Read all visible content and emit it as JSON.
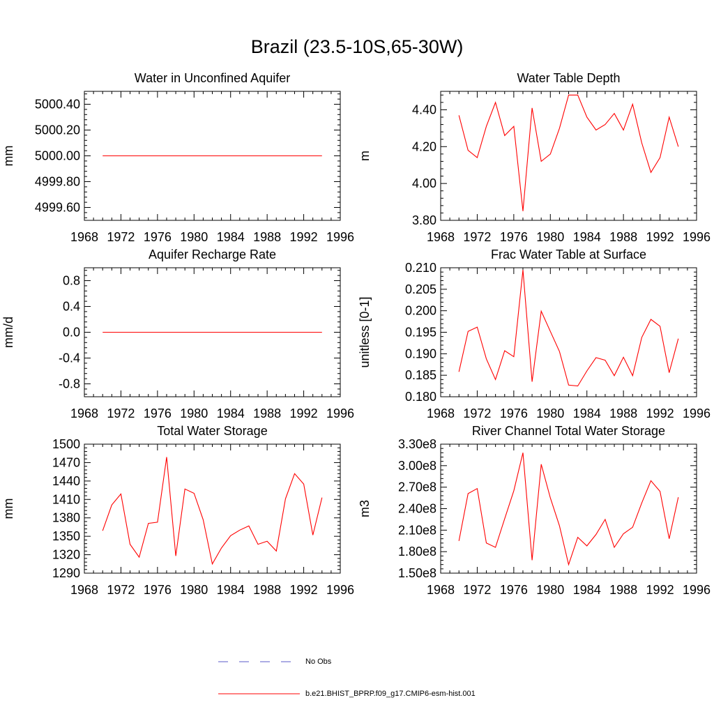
{
  "figure": {
    "title": "Brazil (23.5-10S,65-30W)"
  },
  "legend": {
    "entries": [
      {
        "label": "No Obs",
        "style": "dashed",
        "color": "#5a5ac8"
      },
      {
        "label": "b.e21.BHIST_BPRP.f09_g17.CMIP6-esm-hist.001",
        "style": "solid",
        "color": "#ff0000"
      }
    ]
  },
  "chart_data": [
    {
      "type": "line",
      "title": "Water in Unconfined Aquifer",
      "ylabel": "mm",
      "xlim": [
        1968,
        1996
      ],
      "ylim": [
        4999.5,
        5000.5
      ],
      "xticks": [
        1968,
        1972,
        1976,
        1980,
        1984,
        1988,
        1992,
        1996
      ],
      "xtick_labels": [
        "1968",
        "1972",
        "1976",
        "1980",
        "1984",
        "1988",
        "1992",
        "1996"
      ],
      "yticks": [
        4999.6,
        4999.8,
        5000.0,
        5000.2,
        5000.4
      ],
      "ytick_labels": [
        "4999.60",
        "4999.80",
        "5000.00",
        "5000.20",
        "5000.40"
      ],
      "series": [
        {
          "color": "#ff0000",
          "x": [
            1970,
            1994
          ],
          "y": [
            5000.0,
            5000.0
          ]
        }
      ]
    },
    {
      "type": "line",
      "title": "Water Table Depth",
      "ylabel": "m",
      "xlim": [
        1968,
        1996
      ],
      "ylim": [
        3.8,
        4.5
      ],
      "xticks": [
        1968,
        1972,
        1976,
        1980,
        1984,
        1988,
        1992,
        1996
      ],
      "xtick_labels": [
        "1968",
        "1972",
        "1976",
        "1980",
        "1984",
        "1988",
        "1992",
        "1996"
      ],
      "yticks": [
        3.8,
        4.0,
        4.2,
        4.4
      ],
      "ytick_labels": [
        "3.80",
        "4.00",
        "4.20",
        "4.40"
      ],
      "series": [
        {
          "color": "#ff0000",
          "x": [
            1970,
            1971,
            1972,
            1973,
            1974,
            1975,
            1976,
            1977,
            1978,
            1979,
            1980,
            1981,
            1982,
            1983,
            1984,
            1985,
            1986,
            1987,
            1988,
            1989,
            1990,
            1991,
            1992,
            1993,
            1994
          ],
          "y": [
            4.37,
            4.18,
            4.14,
            4.31,
            4.44,
            4.26,
            4.31,
            3.85,
            4.41,
            4.12,
            4.16,
            4.3,
            4.48,
            4.48,
            4.36,
            4.29,
            4.32,
            4.38,
            4.29,
            4.43,
            4.22,
            4.06,
            4.14,
            4.36,
            4.2
          ]
        }
      ]
    },
    {
      "type": "line",
      "title": "Aquifer Recharge Rate",
      "ylabel": "mm/d",
      "xlim": [
        1968,
        1996
      ],
      "ylim": [
        -1.0,
        1.0
      ],
      "xticks": [
        1968,
        1972,
        1976,
        1980,
        1984,
        1988,
        1992,
        1996
      ],
      "xtick_labels": [
        "1968",
        "1972",
        "1976",
        "1980",
        "1984",
        "1988",
        "1992",
        "1996"
      ],
      "yticks": [
        -0.8,
        -0.4,
        0.0,
        0.4,
        0.8
      ],
      "ytick_labels": [
        "-0.8",
        "-0.4",
        "0.0",
        "0.4",
        "0.8"
      ],
      "series": [
        {
          "color": "#ff0000",
          "x": [
            1970,
            1994
          ],
          "y": [
            0.0,
            0.0
          ]
        }
      ]
    },
    {
      "type": "line",
      "title": "Frac Water Table at Surface",
      "ylabel": "unitless [0-1]",
      "xlim": [
        1968,
        1996
      ],
      "ylim": [
        0.18,
        0.21
      ],
      "xticks": [
        1968,
        1972,
        1976,
        1980,
        1984,
        1988,
        1992,
        1996
      ],
      "xtick_labels": [
        "1968",
        "1972",
        "1976",
        "1980",
        "1984",
        "1988",
        "1992",
        "1996"
      ],
      "yticks": [
        0.18,
        0.185,
        0.19,
        0.195,
        0.2,
        0.205,
        0.21
      ],
      "ytick_labels": [
        "0.180",
        "0.185",
        "0.190",
        "0.195",
        "0.200",
        "0.205",
        "0.210"
      ],
      "series": [
        {
          "color": "#ff0000",
          "x": [
            1970,
            1971,
            1972,
            1973,
            1974,
            1975,
            1976,
            1977,
            1978,
            1979,
            1980,
            1981,
            1982,
            1983,
            1984,
            1985,
            1986,
            1987,
            1988,
            1989,
            1990,
            1991,
            1992,
            1993,
            1994
          ],
          "y": [
            0.1858,
            0.1952,
            0.1962,
            0.1888,
            0.184,
            0.1907,
            0.1893,
            0.2095,
            0.1835,
            0.1999,
            0.1952,
            0.1905,
            0.1827,
            0.1825,
            0.186,
            0.1891,
            0.1885,
            0.1849,
            0.1892,
            0.1849,
            0.1938,
            0.198,
            0.1964,
            0.1856,
            0.1935
          ]
        }
      ]
    },
    {
      "type": "line",
      "title": "Total Water Storage",
      "ylabel": "mm",
      "xlim": [
        1968,
        1996
      ],
      "ylim": [
        1290,
        1500
      ],
      "xticks": [
        1968,
        1972,
        1976,
        1980,
        1984,
        1988,
        1992,
        1996
      ],
      "xtick_labels": [
        "1968",
        "1972",
        "1976",
        "1980",
        "1984",
        "1988",
        "1992",
        "1996"
      ],
      "yticks": [
        1290,
        1320,
        1350,
        1380,
        1410,
        1440,
        1470,
        1500
      ],
      "ytick_labels": [
        "1290",
        "1320",
        "1350",
        "1380",
        "1410",
        "1440",
        "1470",
        "1500"
      ],
      "series": [
        {
          "color": "#ff0000",
          "x": [
            1970,
            1971,
            1972,
            1973,
            1974,
            1975,
            1976,
            1977,
            1978,
            1979,
            1980,
            1981,
            1982,
            1983,
            1984,
            1985,
            1986,
            1987,
            1988,
            1989,
            1990,
            1991,
            1992,
            1993,
            1994
          ],
          "y": [
            1359,
            1401,
            1419,
            1337,
            1316,
            1371,
            1373,
            1479,
            1318,
            1427,
            1420,
            1377,
            1305,
            1331,
            1351,
            1360,
            1367,
            1337,
            1342,
            1326,
            1411,
            1452,
            1435,
            1352,
            1413
          ]
        }
      ]
    },
    {
      "type": "line",
      "title": "River Channel Total Water Storage",
      "ylabel": "m3",
      "xlim": [
        1968,
        1996
      ],
      "ylim": [
        150000000,
        330000000
      ],
      "xticks": [
        1968,
        1972,
        1976,
        1980,
        1984,
        1988,
        1992,
        1996
      ],
      "xtick_labels": [
        "1968",
        "1972",
        "1976",
        "1980",
        "1984",
        "1988",
        "1992",
        "1996"
      ],
      "yticks": [
        150000000,
        180000000,
        210000000,
        240000000,
        270000000,
        300000000,
        330000000
      ],
      "ytick_labels": [
        "1.50e8",
        "1.80e8",
        "2.10e8",
        "2.40e8",
        "2.70e8",
        "3.00e8",
        "3.30e8"
      ],
      "series": [
        {
          "color": "#ff0000",
          "x": [
            1970,
            1971,
            1972,
            1973,
            1974,
            1975,
            1976,
            1977,
            1978,
            1979,
            1980,
            1981,
            1982,
            1983,
            1984,
            1985,
            1986,
            1987,
            1988,
            1989,
            1990,
            1991,
            1992,
            1993,
            1994
          ],
          "y": [
            195000000,
            261000000,
            268000000,
            192000000,
            186000000,
            226000000,
            265000000,
            318000000,
            168000000,
            302000000,
            255000000,
            216000000,
            162000000,
            200000000,
            188000000,
            204000000,
            225000000,
            186000000,
            205000000,
            214000000,
            248000000,
            279000000,
            264000000,
            198000000,
            256000000
          ]
        }
      ]
    }
  ]
}
